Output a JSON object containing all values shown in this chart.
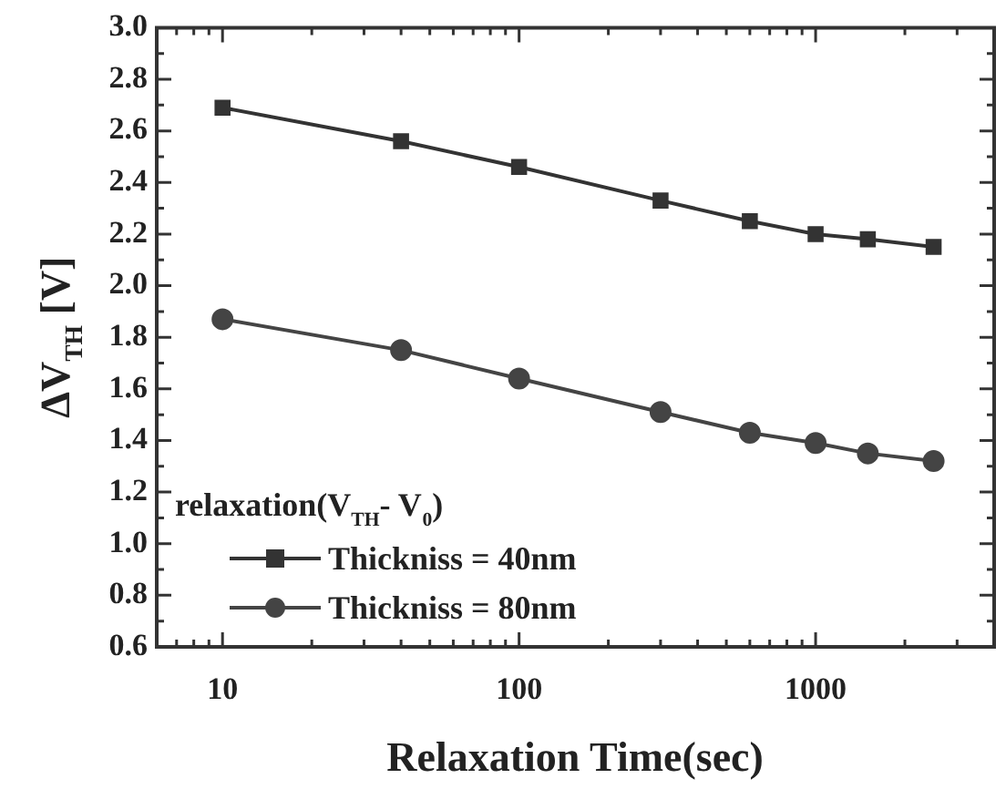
{
  "chart_data": {
    "type": "line",
    "xlabel": "Relaxation Time(sec)",
    "ylabel": "ΔV$_{TH}$ [V]",
    "legend_title": "relaxation(V$_{TH}$- V$_{0}$)",
    "legend": "bottom left",
    "grid": false,
    "log": "x",
    "line_style": "solid",
    "x": [
      10,
      40,
      100,
      300,
      600,
      1000,
      1500,
      2500
    ],
    "xlim": [
      6,
      4000
    ],
    "xticks": [
      10,
      100,
      1000
    ],
    "ylim": [
      0.6,
      3.0
    ],
    "yticks": [
      0.6,
      0.8,
      {
        "value": 1.0,
        "label": "1.0"
      },
      1.2,
      1.4,
      1.6,
      1.8,
      {
        "value": 2.0,
        "label": "2.0"
      },
      2.2,
      2.4,
      2.6,
      2.8,
      {
        "value": 3.0,
        "label": "3.0"
      }
    ],
    "series": [
      {
        "name": "Thickniss = 40nm",
        "color": "#333333",
        "marker": "square",
        "values": [
          2.69,
          2.56,
          2.46,
          2.33,
          2.25,
          2.2,
          2.18,
          2.15
        ]
      },
      {
        "name": "Thickniss = 80nm",
        "color": "#444444",
        "marker": "circle",
        "values": [
          1.87,
          1.75,
          1.64,
          1.51,
          1.43,
          1.39,
          1.35,
          1.32
        ]
      }
    ]
  }
}
